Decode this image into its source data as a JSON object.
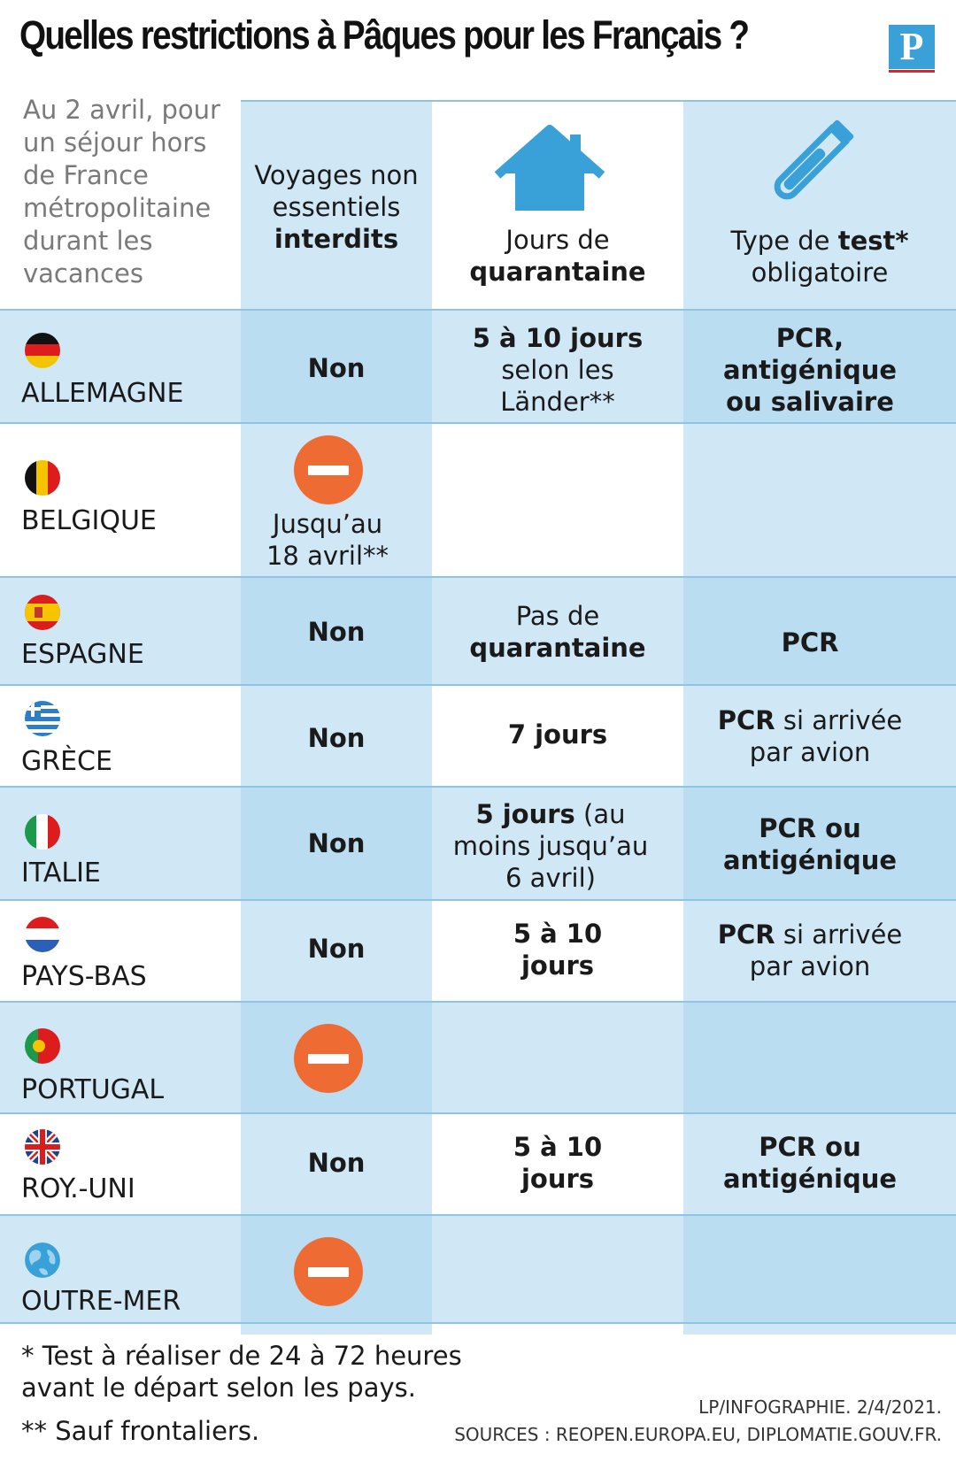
{
  "title": "Quelles restrictions à Pâques pour les Français ?",
  "logo": "P",
  "intro": "Au 2 avril, pour un séjour hors de France métropolitaine durant les vacances",
  "headers": {
    "col1_a": "Voyages non essentiels",
    "col1_b": "interdits",
    "col2_a": "Jours de",
    "col2_b": "quarantaine",
    "col3_a": "Type de ",
    "col3_b": "test*",
    "col3_c": "obligatoire"
  },
  "rows": [
    {
      "country": "ALLEMAGNE",
      "travel": "Non",
      "quar_bold": "5 à 10 jours",
      "quar_text": "selon les Länder**",
      "test_bold": "PCR, antigénique ou salivaire",
      "test_text": ""
    },
    {
      "country": "BELGIQUE",
      "travel_icon": "no-entry-icon",
      "travel": "Jusqu’au 18 avril**",
      "quar_bold": "",
      "quar_text": "",
      "test_bold": "",
      "test_text": ""
    },
    {
      "country": "ESPAGNE",
      "travel": "Non",
      "quar_text": "Pas de",
      "quar_bold": "quarantaine",
      "test_bold": "PCR",
      "test_text": ""
    },
    {
      "country": "GRÈCE",
      "travel": "Non",
      "quar_bold": "7 jours",
      "quar_text": "",
      "test_bold": "PCR",
      "test_text": "si arrivée par avion"
    },
    {
      "country": "ITALIE",
      "travel": "Non",
      "quar_bold": "5 jours",
      "quar_text": "(au moins jusqu’au 6 avril)",
      "test_bold": "PCR ou antigénique",
      "test_text": ""
    },
    {
      "country": "PAYS-BAS",
      "travel": "Non",
      "quar_bold": "5 à 10 jours",
      "quar_text": "",
      "test_bold": "PCR",
      "test_text": "si arrivée par avion"
    },
    {
      "country": "PORTUGAL",
      "travel_icon": "no-entry-icon",
      "travel": "",
      "quar_bold": "",
      "quar_text": "",
      "test_bold": "",
      "test_text": ""
    },
    {
      "country": "ROY.-UNI",
      "travel": "Non",
      "quar_bold": "5 à 10 jours",
      "quar_text": "",
      "test_bold": "PCR ou antigénique",
      "test_text": ""
    },
    {
      "country": "OUTRE-MER",
      "travel_icon": "no-entry-icon",
      "travel": "",
      "quar_bold": "",
      "quar_text": "",
      "test_bold": "",
      "test_text": ""
    }
  ],
  "footnotes": {
    "note1": "* Test à réaliser de 24 à 72 heures avant le départ selon les pays.",
    "note2": "** Sauf frontaliers."
  },
  "credit": "LP/INFOGRAPHIE. 2/4/2021.",
  "sources": "SOURCES : REOPEN.EUROPA.EU, DIPLOMATIE.GOUV.FR.",
  "colors": {
    "accent_blue": "#3aa0d8",
    "light_blue": "#d0e8f6",
    "no_entry": "#ee6c33"
  }
}
